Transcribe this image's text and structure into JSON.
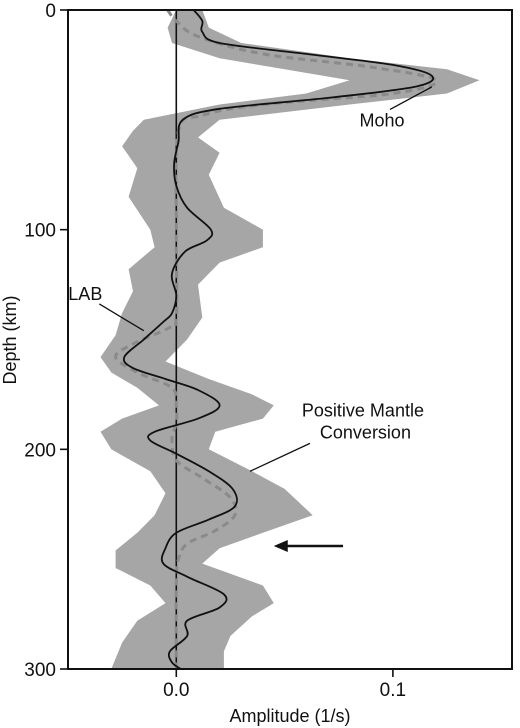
{
  "chart_data": {
    "type": "line",
    "xlabel": "Amplitude (1/s)",
    "ylabel": "Depth (km)",
    "xlim": [
      -0.05,
      0.155
    ],
    "ylim": [
      0,
      300
    ],
    "y_inverted": true,
    "grid": false,
    "x_ticks": [
      {
        "value": 0.0,
        "label": "0.0"
      },
      {
        "value": 0.1,
        "label": "0.1"
      }
    ],
    "y_ticks": [
      {
        "value": 0,
        "label": "0"
      },
      {
        "value": 100,
        "label": "100"
      },
      {
        "value": 200,
        "label": "200"
      },
      {
        "value": 300,
        "label": "300"
      }
    ],
    "series": [
      {
        "style": "solid",
        "color": "#111111",
        "points": [
          [
            0.008,
            0
          ],
          [
            0.012,
            5
          ],
          [
            0.012,
            10
          ],
          [
            0.02,
            15
          ],
          [
            0.06,
            20
          ],
          [
            0.1,
            25
          ],
          [
            0.118,
            30
          ],
          [
            0.11,
            35
          ],
          [
            0.07,
            40
          ],
          [
            0.02,
            45
          ],
          [
            0.003,
            50
          ],
          [
            0.001,
            60
          ],
          [
            -0.001,
            70
          ],
          [
            0.0,
            80
          ],
          [
            0.005,
            90
          ],
          [
            0.016,
            100
          ],
          [
            0.014,
            105
          ],
          [
            0.004,
            110
          ],
          [
            -0.002,
            120
          ],
          [
            0.0,
            130
          ],
          [
            -0.002,
            138
          ],
          [
            -0.006,
            142
          ],
          [
            -0.015,
            150
          ],
          [
            -0.024,
            158
          ],
          [
            -0.02,
            163
          ],
          [
            -0.005,
            168
          ],
          [
            0.01,
            173
          ],
          [
            0.02,
            180
          ],
          [
            0.01,
            186
          ],
          [
            -0.01,
            192
          ],
          [
            -0.012,
            196
          ],
          [
            0.0,
            202
          ],
          [
            0.015,
            210
          ],
          [
            0.026,
            218
          ],
          [
            0.027,
            226
          ],
          [
            0.015,
            232
          ],
          [
            0.0,
            238
          ],
          [
            -0.005,
            245
          ],
          [
            -0.006,
            252
          ],
          [
            0.005,
            258
          ],
          [
            0.022,
            266
          ],
          [
            0.02,
            272
          ],
          [
            0.005,
            278
          ],
          [
            0.005,
            285
          ],
          [
            -0.003,
            292
          ],
          [
            -0.002,
            297
          ],
          [
            0.002,
            300
          ]
        ]
      },
      {
        "style": "dashed",
        "color": "#8a8a8a",
        "points": [
          [
            -0.004,
            0
          ],
          [
            0.0,
            5
          ],
          [
            0.01,
            12
          ],
          [
            0.04,
            20
          ],
          [
            0.09,
            26
          ],
          [
            0.12,
            32
          ],
          [
            0.1,
            38
          ],
          [
            0.04,
            43
          ],
          [
            0.012,
            48
          ],
          [
            0.001,
            55
          ],
          [
            0.0,
            100
          ],
          [
            0.0,
            140
          ],
          [
            -0.004,
            145
          ],
          [
            -0.02,
            152
          ],
          [
            -0.028,
            158
          ],
          [
            -0.018,
            165
          ],
          [
            -0.002,
            172
          ],
          [
            0.0,
            180
          ],
          [
            0.0,
            188
          ],
          [
            -0.002,
            195
          ],
          [
            0.0,
            205
          ],
          [
            0.012,
            213
          ],
          [
            0.025,
            222
          ],
          [
            0.027,
            230
          ],
          [
            0.018,
            237
          ],
          [
            0.005,
            243
          ],
          [
            0.001,
            250
          ],
          [
            0.0,
            260
          ],
          [
            0.0,
            300
          ]
        ]
      }
    ],
    "uncertainty_band": {
      "color": "#a6a6a6",
      "upper": [
        [
          0.012,
          0
        ],
        [
          0.015,
          8
        ],
        [
          0.03,
          15
        ],
        [
          0.08,
          22
        ],
        [
          0.125,
          27
        ],
        [
          0.14,
          32
        ],
        [
          0.125,
          38
        ],
        [
          0.08,
          43
        ],
        [
          0.02,
          50
        ],
        [
          0.01,
          58
        ],
        [
          0.02,
          65
        ],
        [
          0.015,
          75
        ],
        [
          0.022,
          90
        ],
        [
          0.04,
          100
        ],
        [
          0.04,
          108
        ],
        [
          0.02,
          115
        ],
        [
          0.01,
          125
        ],
        [
          0.012,
          140
        ],
        [
          0.005,
          150
        ],
        [
          -0.005,
          160
        ],
        [
          0.015,
          168
        ],
        [
          0.035,
          175
        ],
        [
          0.045,
          180
        ],
        [
          0.04,
          186
        ],
        [
          0.018,
          192
        ],
        [
          0.015,
          200
        ],
        [
          0.035,
          210
        ],
        [
          0.05,
          218
        ],
        [
          0.063,
          230
        ],
        [
          0.04,
          238
        ],
        [
          0.02,
          245
        ],
        [
          0.012,
          252
        ],
        [
          0.04,
          262
        ],
        [
          0.045,
          270
        ],
        [
          0.035,
          276
        ],
        [
          0.025,
          285
        ],
        [
          0.022,
          292
        ],
        [
          0.022,
          300
        ]
      ],
      "lower": [
        [
          0.0,
          0
        ],
        [
          -0.004,
          8
        ],
        [
          -0.002,
          15
        ],
        [
          0.02,
          22
        ],
        [
          0.05,
          27
        ],
        [
          0.08,
          32
        ],
        [
          0.06,
          38
        ],
        [
          0.02,
          43
        ],
        [
          -0.015,
          50
        ],
        [
          -0.02,
          55
        ],
        [
          -0.025,
          62
        ],
        [
          -0.018,
          72
        ],
        [
          -0.022,
          85
        ],
        [
          -0.012,
          100
        ],
        [
          -0.01,
          108
        ],
        [
          -0.022,
          118
        ],
        [
          -0.02,
          128
        ],
        [
          -0.025,
          138
        ],
        [
          -0.028,
          148
        ],
        [
          -0.035,
          158
        ],
        [
          -0.03,
          165
        ],
        [
          -0.018,
          172
        ],
        [
          -0.008,
          180
        ],
        [
          -0.025,
          186
        ],
        [
          -0.035,
          192
        ],
        [
          -0.03,
          200
        ],
        [
          -0.012,
          210
        ],
        [
          -0.005,
          220
        ],
        [
          -0.01,
          230
        ],
        [
          -0.018,
          238
        ],
        [
          -0.028,
          246
        ],
        [
          -0.028,
          254
        ],
        [
          -0.012,
          262
        ],
        [
          -0.005,
          270
        ],
        [
          -0.018,
          278
        ],
        [
          -0.025,
          288
        ],
        [
          -0.03,
          300
        ]
      ]
    },
    "annotations": [
      {
        "id": "moho",
        "text": [
          "Moho"
        ],
        "anchor": [
          0.118,
          35
        ],
        "label_pos": [
          0.095,
          53
        ]
      },
      {
        "id": "lab",
        "text": [
          "LAB"
        ],
        "anchor": [
          -0.015,
          146
        ],
        "label_pos": [
          -0.042,
          132
        ]
      },
      {
        "id": "positive-mantle-conversion",
        "text": [
          "Positive Mantle",
          "Conversion"
        ],
        "anchor": [
          0.034,
          210
        ],
        "label_pos": [
          0.058,
          185
        ]
      }
    ],
    "arrow": {
      "from": [
        0.077,
        244
      ],
      "to": [
        0.045,
        244
      ]
    }
  }
}
